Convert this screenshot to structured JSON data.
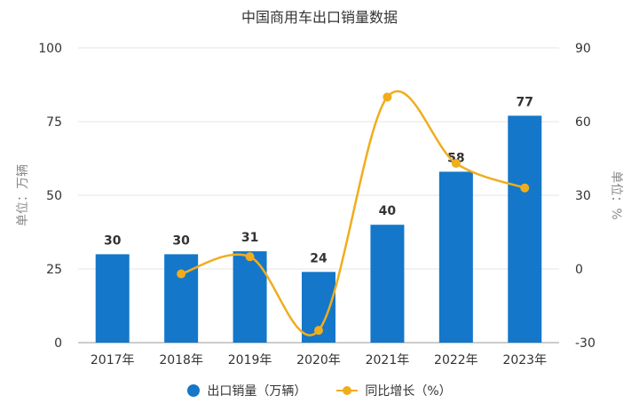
{
  "chart_data": {
    "type": "bar+line",
    "title": "中国商用车出口销量数据",
    "categories": [
      "2017年",
      "2018年",
      "2019年",
      "2020年",
      "2021年",
      "2022年",
      "2023年"
    ],
    "series": [
      {
        "name": "出口销量（万辆）",
        "type": "bar",
        "axis": "left",
        "values": [
          30,
          30,
          31,
          24,
          40,
          58,
          77
        ],
        "labels": [
          "30",
          "30",
          "31",
          "24",
          "40",
          "58",
          "77"
        ]
      },
      {
        "name": "同比增长（%）",
        "type": "line",
        "axis": "right",
        "values": [
          null,
          -2,
          5,
          -25,
          70,
          43,
          33
        ]
      }
    ],
    "ylabel_left": "单位：万辆",
    "ylabel_right": "单位：%",
    "ylim_left": [
      0,
      100
    ],
    "ylim_right": [
      -30,
      90
    ],
    "yticks_left": [
      "0",
      "25",
      "50",
      "75",
      "100"
    ],
    "yticks_right": [
      "-30",
      "0",
      "30",
      "60",
      "90"
    ],
    "grid": true,
    "legend_position": "bottom",
    "colors": {
      "bar": "#1477c9",
      "line": "#f0ad1e"
    }
  }
}
